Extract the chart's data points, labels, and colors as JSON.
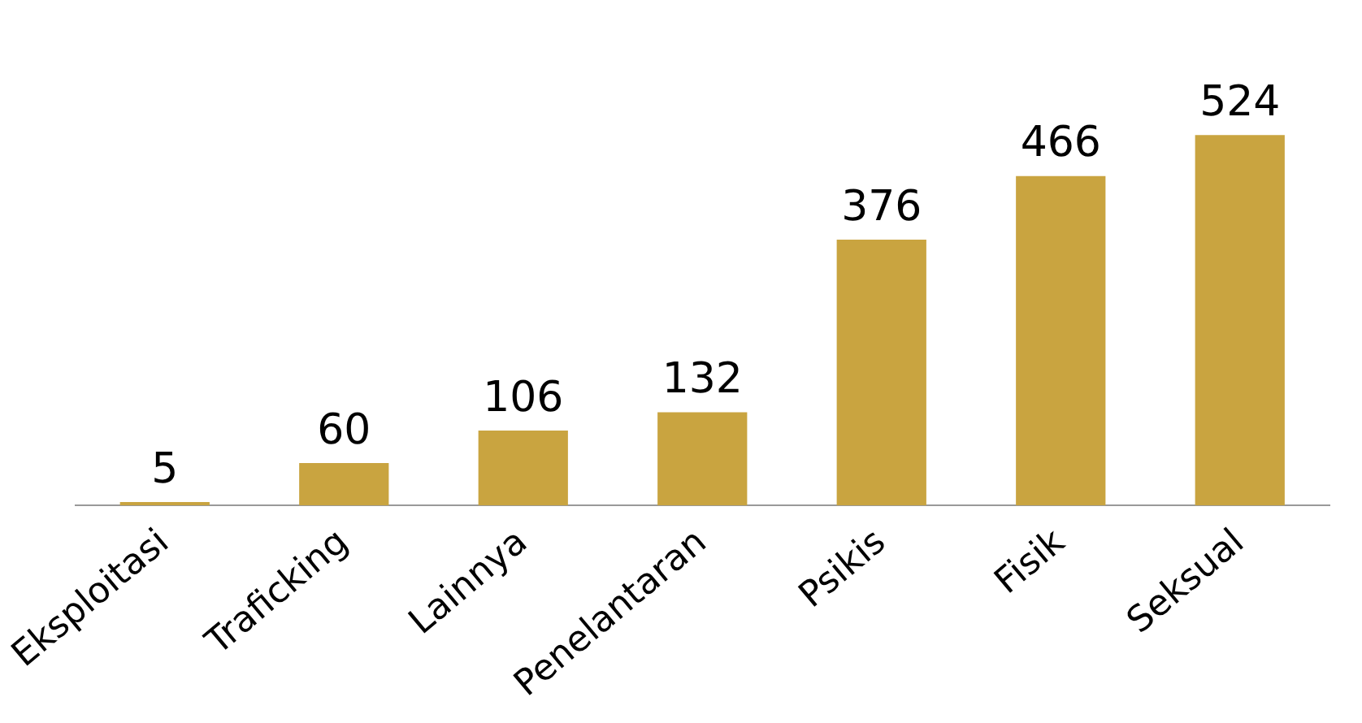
{
  "chart_data": {
    "type": "bar",
    "categories": [
      "Eksploitasi",
      "Traficking",
      "Lainnya",
      "Penelantaran",
      "Psikis",
      "Fisik",
      "Seksual"
    ],
    "values": [
      5,
      60,
      106,
      132,
      376,
      466,
      524
    ],
    "color": "#c9a440",
    "data_labels": true,
    "grid": false,
    "legend": false,
    "tick_labels": "x"
  }
}
